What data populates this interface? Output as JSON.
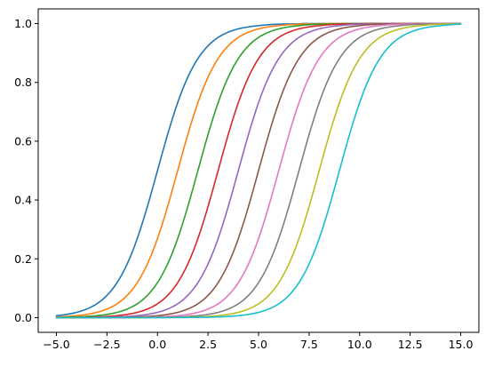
{
  "chart_data": {
    "type": "line",
    "title": "",
    "xlabel": "",
    "ylabel": "",
    "xlim": [
      -5.9,
      15.9
    ],
    "ylim": [
      -0.05,
      1.05
    ],
    "grid": false,
    "legend": "none",
    "x_ticks": [
      -5.0,
      -2.5,
      0.0,
      2.5,
      5.0,
      7.5,
      10.0,
      12.5,
      15.0
    ],
    "x_tick_labels": [
      "−5.0",
      "−2.5",
      "0.0",
      "2.5",
      "5.0",
      "7.5",
      "10.0",
      "12.5",
      "15.0"
    ],
    "y_ticks": [
      0.0,
      0.2,
      0.4,
      0.6,
      0.8,
      1.0
    ],
    "y_tick_labels": [
      "0.0",
      "0.2",
      "0.4",
      "0.6",
      "0.8",
      "1.0"
    ],
    "x": [
      -5,
      -4,
      -3,
      -2,
      -1,
      0,
      1,
      2,
      3,
      4,
      5,
      6,
      7,
      8,
      9,
      10,
      11,
      12,
      13,
      14,
      15
    ],
    "series": [
      {
        "color": "#1f77b4",
        "values": [
          0.0067,
          0.018,
          0.047,
          0.119,
          0.269,
          0.5,
          0.731,
          0.881,
          0.953,
          0.982,
          0.993,
          0.998,
          0.999,
          1.0,
          1.0,
          1.0,
          1.0,
          1.0,
          1.0,
          1.0,
          1.0
        ]
      },
      {
        "color": "#ff7f0e",
        "values": [
          0.0025,
          0.0067,
          0.018,
          0.047,
          0.119,
          0.269,
          0.5,
          0.731,
          0.881,
          0.953,
          0.982,
          0.993,
          0.998,
          0.999,
          1.0,
          1.0,
          1.0,
          1.0,
          1.0,
          1.0,
          1.0
        ]
      },
      {
        "color": "#2ca02c",
        "values": [
          0.0009,
          0.0025,
          0.0067,
          0.018,
          0.047,
          0.119,
          0.269,
          0.5,
          0.731,
          0.881,
          0.953,
          0.982,
          0.993,
          0.998,
          0.999,
          1.0,
          1.0,
          1.0,
          1.0,
          1.0,
          1.0
        ]
      },
      {
        "color": "#d62728",
        "values": [
          0.0003,
          0.0009,
          0.0025,
          0.0067,
          0.018,
          0.047,
          0.119,
          0.269,
          0.5,
          0.731,
          0.881,
          0.953,
          0.982,
          0.993,
          0.998,
          0.999,
          1.0,
          1.0,
          1.0,
          1.0,
          1.0
        ]
      },
      {
        "color": "#9467bd",
        "values": [
          0.0001,
          0.0003,
          0.0009,
          0.0025,
          0.0067,
          0.018,
          0.047,
          0.119,
          0.269,
          0.5,
          0.731,
          0.881,
          0.953,
          0.982,
          0.993,
          0.998,
          0.999,
          1.0,
          1.0,
          1.0,
          1.0
        ]
      },
      {
        "color": "#8c564b",
        "values": [
          0.0,
          0.0001,
          0.0003,
          0.0009,
          0.0025,
          0.0067,
          0.018,
          0.047,
          0.119,
          0.269,
          0.5,
          0.731,
          0.881,
          0.953,
          0.982,
          0.993,
          0.998,
          0.999,
          1.0,
          1.0,
          1.0
        ]
      },
      {
        "color": "#e377c2",
        "values": [
          0.0,
          0.0,
          0.0001,
          0.0003,
          0.0009,
          0.0025,
          0.0067,
          0.018,
          0.047,
          0.119,
          0.269,
          0.5,
          0.731,
          0.881,
          0.953,
          0.982,
          0.993,
          0.998,
          0.999,
          1.0,
          1.0
        ]
      },
      {
        "color": "#7f7f7f",
        "values": [
          0.0,
          0.0,
          0.0,
          0.0001,
          0.0003,
          0.0009,
          0.0025,
          0.0067,
          0.018,
          0.047,
          0.119,
          0.269,
          0.5,
          0.731,
          0.881,
          0.953,
          0.982,
          0.993,
          0.998,
          0.999,
          1.0
        ]
      },
      {
        "color": "#bcbd22",
        "values": [
          0.0,
          0.0,
          0.0,
          0.0,
          0.0001,
          0.0003,
          0.0009,
          0.0025,
          0.0067,
          0.018,
          0.047,
          0.119,
          0.269,
          0.5,
          0.731,
          0.881,
          0.953,
          0.982,
          0.993,
          0.998,
          0.999
        ]
      },
      {
        "color": "#17becf",
        "values": [
          0.0,
          0.0,
          0.0,
          0.0,
          0.0,
          0.0001,
          0.0003,
          0.0009,
          0.0025,
          0.0067,
          0.018,
          0.047,
          0.119,
          0.269,
          0.5,
          0.731,
          0.881,
          0.953,
          0.982,
          0.993,
          0.998
        ]
      }
    ]
  }
}
